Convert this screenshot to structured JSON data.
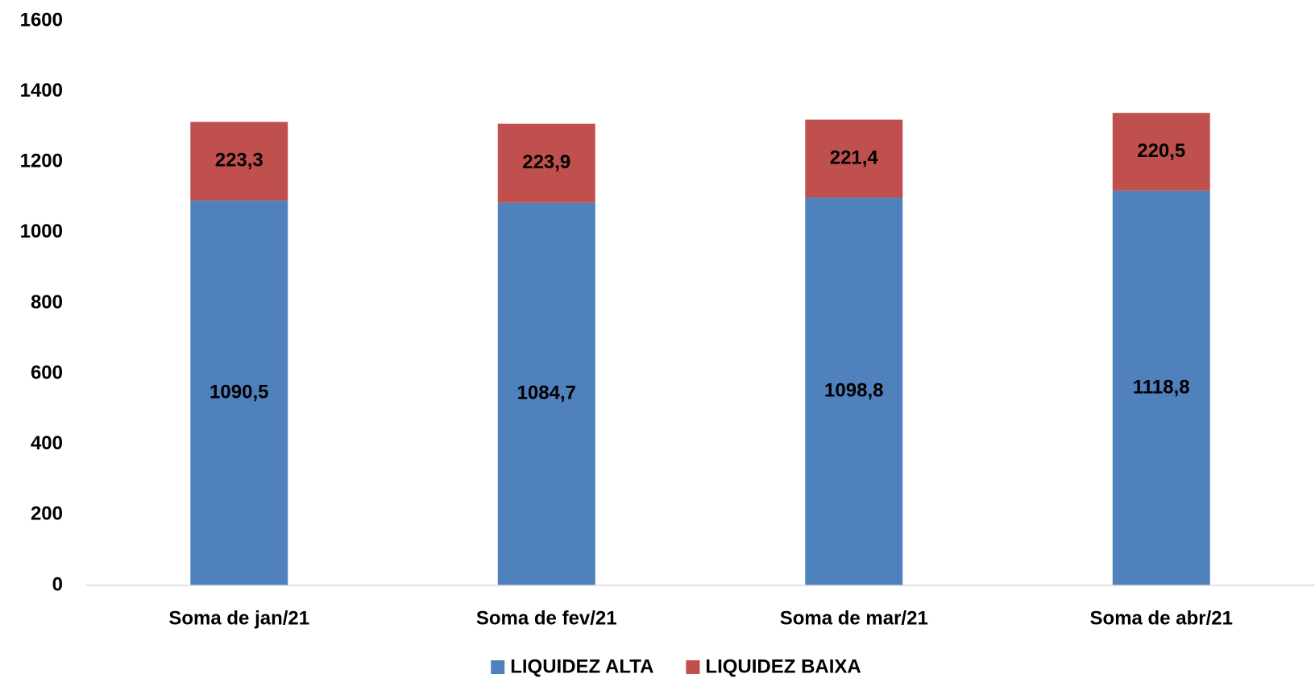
{
  "chart_data": {
    "type": "stacked_bar",
    "categories": [
      "Soma de jan/21",
      "Soma de fev/21",
      "Soma de mar/21",
      "Soma de abr/21"
    ],
    "series": [
      {
        "name": "LIQUIDEZ ALTA",
        "color": "#4f81bd",
        "values": [
          1090.5,
          1084.7,
          1098.8,
          1118.8
        ],
        "value_labels": [
          "1090,5",
          "1084,7",
          "1098,8",
          "1118,8"
        ]
      },
      {
        "name": "LIQUIDEZ BAIXA",
        "color": "#c0504d",
        "values": [
          223.3,
          223.9,
          221.4,
          220.5
        ],
        "value_labels": [
          "223,3",
          "223,9",
          "221,4",
          "220,5"
        ]
      }
    ],
    "ylim": [
      0,
      1600
    ],
    "yticks": [
      0,
      200,
      400,
      600,
      800,
      1000,
      1200,
      1400,
      1600
    ],
    "grid": false,
    "legend": "bottom"
  }
}
